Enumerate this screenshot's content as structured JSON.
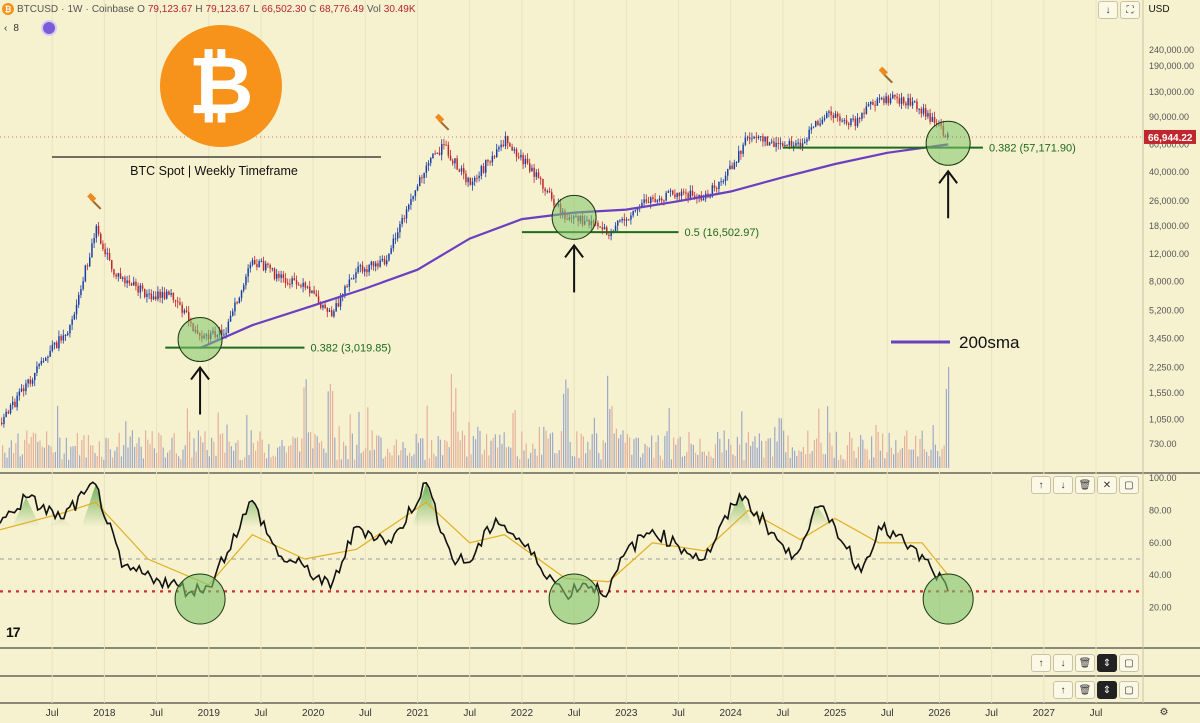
{
  "header": {
    "symbol": "BTCUSD",
    "interval": "1W",
    "exchange": "Coinbase",
    "open_label": "O",
    "open": "79,123.67",
    "high_label": "H",
    "high": "79,123.67",
    "low_label": "L",
    "low": "66,502.30",
    "close_label": "C",
    "close": "68,776.49",
    "vol_label": "Vol",
    "vol": "30.49K",
    "currency": "USD",
    "indicator_count": "8",
    "indicator_chevron": "‹"
  },
  "logo": {
    "glyph": "₿",
    "title": "BTC Spot | Weekly Timeframe"
  },
  "colors": {
    "up": "#1a3fa8",
    "down": "#c0262e",
    "sma": "#6a3fc0",
    "fib": "#1e6b1e",
    "rsi": "#111111",
    "rsi_ma": "#e0b020",
    "oversold": "#d23030",
    "circle_fill": "#7fc46a",
    "price_badge": "#c0262e"
  },
  "icons": [
    "down-arrow-icon",
    "fullscreen-icon",
    "up-arrow-icon",
    "trash-icon",
    "collapse-icon",
    "expand-icon",
    "settings-icon",
    "tradingview-logo-icon",
    "bitcoin-logo-icon",
    "hammer-icon"
  ],
  "chart_data": [
    {
      "type": "candlestick",
      "scale": "log",
      "x_range": [
        "2017-01",
        "2027-12"
      ],
      "x_tick_labels": [
        "Jul",
        "2018",
        "Jul",
        "2019",
        "Jul",
        "2020",
        "Jul",
        "2021",
        "Jul",
        "2022",
        "Jul",
        "2023",
        "Jul",
        "2024",
        "Jul",
        "2025",
        "Jul",
        "2026",
        "Jul",
        "2027",
        "Jul"
      ],
      "y_tick_labels": [
        "240,000.00",
        "190,000.00",
        "130,000.00",
        "90,000.00",
        "60,000.00",
        "40,000.00",
        "26,000.00",
        "18,000.00",
        "12,000.00",
        "8,000.00",
        "5,200.00",
        "3,450.00",
        "2,250.00",
        "1,550.00",
        "1,050.00",
        "730.00"
      ],
      "price_line": {
        "value": 66944.22,
        "label": "66,944.22"
      },
      "price_path": {
        "x": [
          "2017-01",
          "2017-06",
          "2017-09",
          "2017-12",
          "2018-02",
          "2018-06",
          "2018-09",
          "2018-12",
          "2019-03",
          "2019-06",
          "2019-09",
          "2019-12",
          "2020-03",
          "2020-06",
          "2020-09",
          "2020-12",
          "2021-02",
          "2021-04",
          "2021-07",
          "2021-11",
          "2022-02",
          "2022-06",
          "2022-09",
          "2022-11",
          "2023-03",
          "2023-07",
          "2023-10",
          "2024-01",
          "2024-03",
          "2024-07",
          "2024-09",
          "2024-12",
          "2025-03",
          "2025-05",
          "2025-07",
          "2025-10",
          "2025-12",
          "2026-02"
        ],
        "y": [
          1000,
          2500,
          4200,
          17000,
          9000,
          6500,
          6500,
          3300,
          4000,
          11000,
          8500,
          7200,
          5000,
          9300,
          10500,
          25000,
          47000,
          58000,
          33000,
          65000,
          42000,
          20000,
          19500,
          16500,
          26000,
          30000,
          27000,
          43000,
          68000,
          58000,
          60000,
          98000,
          82000,
          106000,
          118000,
          110000,
          88000,
          66944
        ]
      },
      "sma200": {
        "name": "200sma",
        "x": [
          "2018-12",
          "2019-06",
          "2020-01",
          "2020-07",
          "2021-01",
          "2021-07",
          "2022-01",
          "2022-07",
          "2023-01",
          "2023-07",
          "2024-01",
          "2024-07",
          "2025-01",
          "2025-07",
          "2026-02"
        ],
        "y": [
          3000,
          4200,
          5600,
          7200,
          9500,
          15000,
          20000,
          22000,
          23000,
          26000,
          30000,
          37000,
          45000,
          53000,
          60000
        ]
      },
      "hammers": [
        {
          "x": "2017-12",
          "y": 25000
        },
        {
          "x": "2021-04",
          "y": 80000
        },
        {
          "x": "2025-07",
          "y": 160000
        }
      ],
      "fib_levels": [
        {
          "label": "0.382 (3,019.85)",
          "value": 3019.85,
          "from": "2018-08",
          "to": "2019-12"
        },
        {
          "label": "0.5 (16,502.97)",
          "value": 16502.97,
          "from": "2022-01",
          "to": "2023-07"
        },
        {
          "label": "0.382 (57,171.90)",
          "value": 57171.9,
          "from": "2024-07",
          "to": "2026-06"
        }
      ],
      "support_touches": [
        {
          "x": "2018-12",
          "y": 3400
        },
        {
          "x": "2022-07",
          "y": 20500
        },
        {
          "x": "2026-02",
          "y": 61000
        }
      ],
      "legend": "200sma",
      "volume_spikes": [
        "2019-12",
        "2020-03",
        "2021-05",
        "2022-06",
        "2022-11",
        "2026-02"
      ]
    },
    {
      "type": "line",
      "y_tick_labels": [
        "100.00",
        "80.00",
        "60.00",
        "40.00",
        "20.00"
      ],
      "ylim": [
        0,
        100
      ],
      "bands": [
        50,
        30
      ],
      "series": [
        {
          "x": [
            "2017-01",
            "2017-04",
            "2017-08",
            "2017-12",
            "2018-03",
            "2018-07",
            "2018-11",
            "2019-01",
            "2019-06",
            "2019-09",
            "2019-12",
            "2020-03",
            "2020-06",
            "2020-10",
            "2021-02",
            "2021-05",
            "2021-07",
            "2021-10",
            "2022-01",
            "2022-06",
            "2022-08",
            "2022-11",
            "2023-01",
            "2023-04",
            "2023-07",
            "2023-10",
            "2024-02",
            "2024-05",
            "2024-08",
            "2024-11",
            "2025-01",
            "2025-04",
            "2025-06",
            "2025-09",
            "2025-12",
            "2026-02"
          ],
          "y": [
            72,
            88,
            75,
            96,
            45,
            38,
            30,
            33,
            86,
            52,
            45,
            32,
            70,
            60,
            97,
            50,
            48,
            75,
            60,
            28,
            35,
            30,
            55,
            68,
            58,
            50,
            90,
            72,
            50,
            82,
            70,
            42,
            70,
            60,
            45,
            30
          ]
        },
        {
          "x": [
            "2017-01",
            "2017-08",
            "2017-12",
            "2018-06",
            "2019-01",
            "2019-06",
            "2019-12",
            "2020-06",
            "2021-02",
            "2021-07",
            "2021-11",
            "2022-06",
            "2022-11",
            "2023-04",
            "2023-10",
            "2024-03",
            "2024-09",
            "2025-01",
            "2025-06",
            "2025-11",
            "2026-02"
          ],
          "y": [
            68,
            78,
            85,
            50,
            34,
            65,
            50,
            56,
            85,
            60,
            65,
            38,
            36,
            60,
            55,
            80,
            62,
            75,
            60,
            60,
            40
          ]
        }
      ],
      "support_touches": [
        {
          "x": "2018-12",
          "y": 29
        },
        {
          "x": "2022-07",
          "y": 29
        },
        {
          "x": "2026-02",
          "y": 29
        }
      ]
    }
  ]
}
